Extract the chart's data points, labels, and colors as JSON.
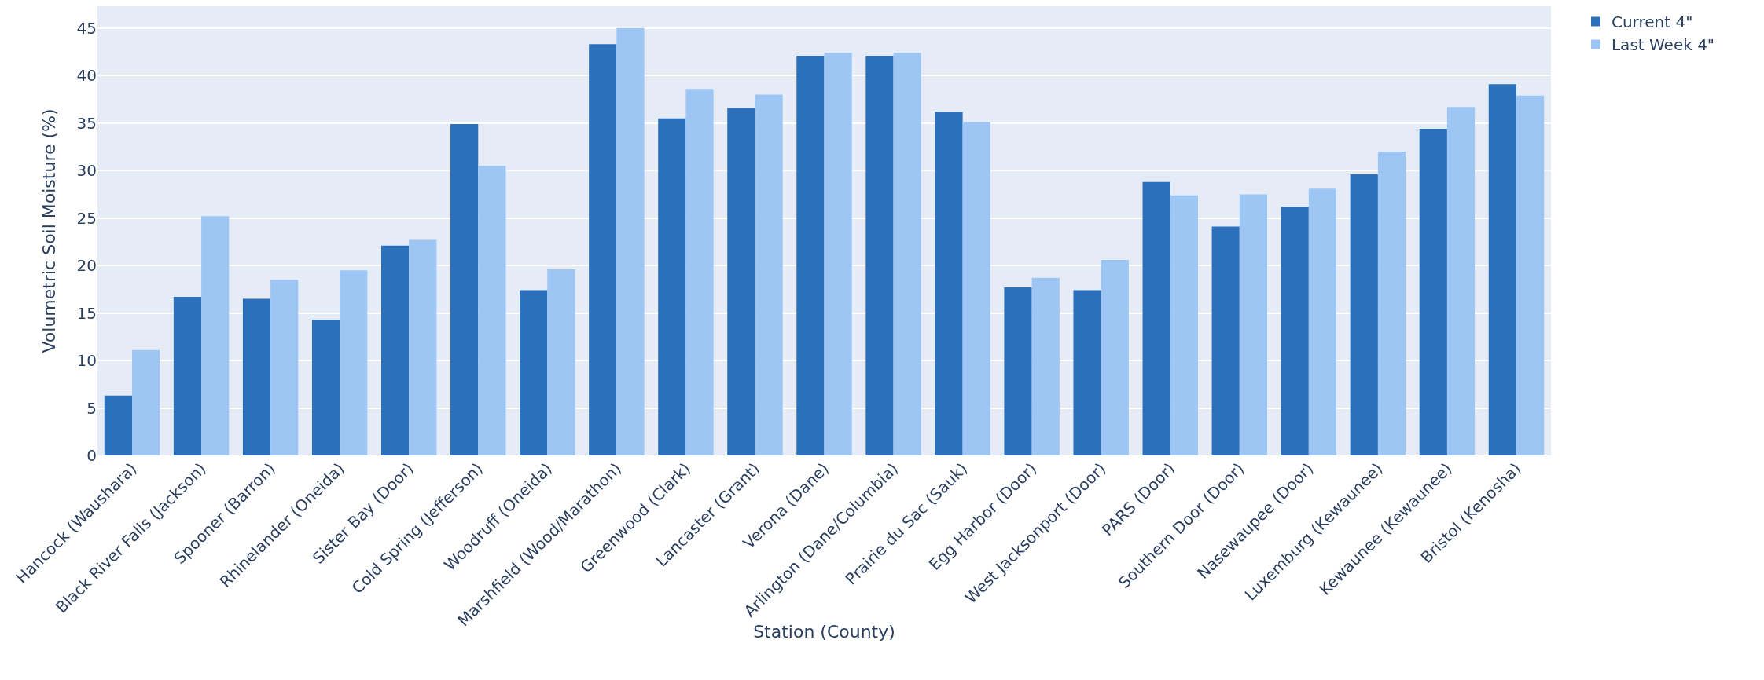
{
  "chart_data": {
    "type": "bar",
    "xlabel": "Station (County)",
    "ylabel": "Volumetric Soil Moisture (%)",
    "categories": [
      "Hancock (Waushara)",
      "Black River Falls (Jackson)",
      "Spooner (Barron)",
      "Rhinelander (Oneida)",
      "Sister Bay (Door)",
      "Cold Spring (Jefferson)",
      "Woodruff (Oneida)",
      "Marshfield (Wood/Marathon)",
      "Greenwood (Clark)",
      "Lancaster (Grant)",
      "Verona (Dane)",
      "Arlington (Dane/Columbia)",
      "Prairie du Sac (Sauk)",
      "Egg Harbor (Door)",
      "West Jacksonport (Door)",
      "PARS (Door)",
      "Southern Door (Door)",
      "Nasewaupee (Door)",
      "Luxemburg (Kewaunee)",
      "Kewaunee (Kewaunee)",
      "Bristol (Kenosha)"
    ],
    "series": [
      {
        "name": "Current 4\"",
        "color": "#2c6fbb",
        "values": [
          6.3,
          16.7,
          16.5,
          14.3,
          22.1,
          34.9,
          17.4,
          43.3,
          35.5,
          36.6,
          42.1,
          42.1,
          36.2,
          17.7,
          17.4,
          28.8,
          24.1,
          26.2,
          29.6,
          34.4,
          39.1
        ]
      },
      {
        "name": "Last Week 4\"",
        "color": "#9dc6f5",
        "values": [
          11.1,
          25.2,
          18.5,
          19.5,
          22.7,
          30.5,
          19.6,
          45.0,
          38.6,
          38.0,
          42.4,
          42.4,
          35.1,
          18.7,
          20.6,
          27.4,
          27.5,
          28.1,
          32.0,
          36.7,
          37.9
        ]
      }
    ],
    "ylim": [
      0,
      47.3
    ],
    "yticks": [
      0,
      5,
      10,
      15,
      20,
      25,
      30,
      35,
      40,
      45
    ],
    "grid": "y",
    "legend": "top right"
  }
}
